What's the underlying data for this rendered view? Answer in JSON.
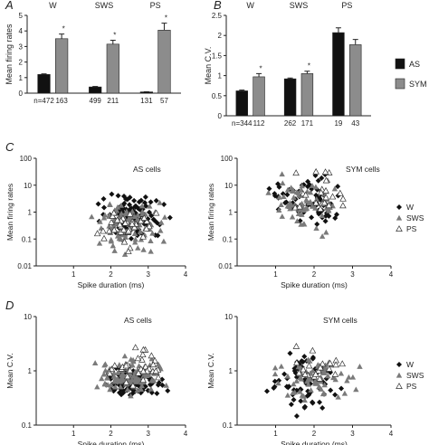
{
  "chart_data": [
    {
      "panel": "A",
      "type": "bar",
      "ylabel": "Mean firing rates",
      "ylim": [
        0,
        5
      ],
      "yticks": [
        "0",
        "1",
        "2",
        "3",
        "4",
        "5"
      ],
      "groups": [
        "W",
        "SWS",
        "PS"
      ],
      "series": [
        {
          "name": "AS",
          "color": "#111111",
          "values": [
            1.2,
            0.4,
            0.08
          ],
          "errors": [
            0.04,
            0.03,
            0.01
          ],
          "n": [
            "n=472",
            "499",
            "131"
          ]
        },
        {
          "name": "SYM",
          "color": "#8c8c8c",
          "values": [
            3.5,
            3.15,
            4.05
          ],
          "errors": [
            0.3,
            0.25,
            0.45
          ],
          "n": [
            "163",
            "211",
            "57"
          ],
          "markers": [
            "*",
            "*",
            "*"
          ]
        }
      ]
    },
    {
      "panel": "B",
      "type": "bar",
      "ylabel": "Mean C.V.",
      "ylim": [
        0,
        2.5
      ],
      "yticks": [
        "0",
        "0.5",
        "1",
        "1.5",
        "2",
        "2.5"
      ],
      "groups": [
        "W",
        "SWS",
        "PS"
      ],
      "legend_position": "right",
      "series": [
        {
          "name": "AS",
          "color": "#111111",
          "values": [
            0.62,
            0.92,
            2.07
          ],
          "errors": [
            0.02,
            0.02,
            0.12
          ],
          "n": [
            "n=344",
            "262",
            "19"
          ]
        },
        {
          "name": "SYM",
          "color": "#8c8c8c",
          "values": [
            0.97,
            1.05,
            1.77
          ],
          "errors": [
            0.08,
            0.06,
            0.13
          ],
          "n": [
            "112",
            "171",
            "43"
          ],
          "markers": [
            "*",
            "*",
            ""
          ]
        }
      ]
    },
    {
      "panel": "C",
      "type": "scatter",
      "title": "AS cells",
      "xlabel": "Spike duration (ms)",
      "ylabel": "Mean firing rates",
      "xlim": [
        0,
        4
      ],
      "xticks": [
        "1",
        "2",
        "3",
        "4"
      ],
      "ylim": [
        0.01,
        100
      ],
      "yticks": [
        "0.01",
        "0.1",
        "1",
        "10",
        "100"
      ],
      "yscale": "log",
      "cloud": [
        {
          "name": "W",
          "n": 120,
          "xmin": 1.5,
          "xmax": 3.6,
          "ymin": 0.08,
          "ymax": 6
        },
        {
          "name": "SWS",
          "n": 110,
          "xmin": 1.3,
          "xmax": 3.6,
          "ymin": 0.03,
          "ymax": 5
        },
        {
          "name": "PS",
          "n": 35,
          "xmin": 1.6,
          "xmax": 3.3,
          "ymin": 0.02,
          "ymax": 3
        }
      ]
    },
    {
      "panel": "C",
      "type": "scatter",
      "title": "SYM cells",
      "xlabel": "Spike duration (ms)",
      "ylabel": "Mean firing rates",
      "xlim": [
        0,
        4
      ],
      "xticks": [
        "1",
        "2",
        "3",
        "4"
      ],
      "ylim": [
        0.01,
        100
      ],
      "yticks": [
        "0.01",
        "0.1",
        "1",
        "10",
        "100"
      ],
      "yscale": "log",
      "legend": [
        "W",
        "SWS",
        "PS"
      ],
      "cloud": [
        {
          "name": "W",
          "n": 70,
          "xmin": 0.7,
          "xmax": 3.0,
          "ymin": 0.2,
          "ymax": 40
        },
        {
          "name": "SWS",
          "n": 75,
          "xmin": 0.7,
          "xmax": 2.8,
          "ymin": 0.1,
          "ymax": 30
        },
        {
          "name": "PS",
          "n": 22,
          "xmin": 1.0,
          "xmax": 3.2,
          "ymin": 0.3,
          "ymax": 50
        }
      ]
    },
    {
      "panel": "D",
      "type": "scatter",
      "title": "AS cells",
      "xlabel": "Spike duration (ms)",
      "ylabel": "Mean C.V.",
      "xlim": [
        0,
        4
      ],
      "xticks": [
        "1",
        "2",
        "3",
        "4"
      ],
      "ylim": [
        0.1,
        10
      ],
      "yticks": [
        "0.1",
        "1",
        "10"
      ],
      "yscale": "log",
      "cloud": [
        {
          "name": "W",
          "n": 110,
          "xmin": 1.6,
          "xmax": 3.6,
          "ymin": 0.28,
          "ymax": 1.3
        },
        {
          "name": "SWS",
          "n": 110,
          "xmin": 1.5,
          "xmax": 3.6,
          "ymin": 0.3,
          "ymax": 2.0
        },
        {
          "name": "PS",
          "n": 35,
          "xmin": 1.8,
          "xmax": 3.5,
          "ymin": 0.5,
          "ymax": 3.2
        }
      ]
    },
    {
      "panel": "D",
      "type": "scatter",
      "title": "SYM cells",
      "xlabel": "Spike duration (ms)",
      "ylabel": "Mean C.V.",
      "xlim": [
        0,
        4
      ],
      "xticks": [
        "1",
        "2",
        "3",
        "4"
      ],
      "ylim": [
        0.1,
        10
      ],
      "yticks": [
        "0.1",
        "1",
        "10"
      ],
      "yscale": "log",
      "legend": [
        "W",
        "SWS",
        "PS"
      ],
      "cloud": [
        {
          "name": "W",
          "n": 70,
          "xmin": 0.7,
          "xmax": 2.8,
          "ymin": 0.13,
          "ymax": 3.5
        },
        {
          "name": "SWS",
          "n": 70,
          "xmin": 0.7,
          "xmax": 3.3,
          "ymin": 0.2,
          "ymax": 2.5
        },
        {
          "name": "PS",
          "n": 20,
          "xmin": 1.0,
          "xmax": 3.2,
          "ymin": 0.4,
          "ymax": 3.5
        }
      ]
    }
  ],
  "panel_labels": [
    "A",
    "B",
    "C",
    "D"
  ]
}
